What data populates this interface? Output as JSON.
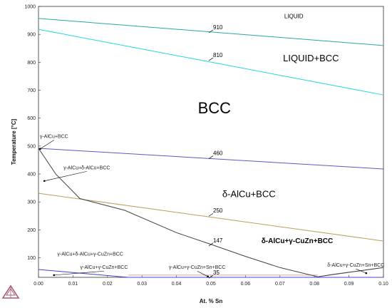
{
  "chart_data": {
    "type": "line",
    "title": "",
    "xlabel": "At. % Sn",
    "ylabel": "Temperature [°C]",
    "xlim": [
      0,
      0.1
    ],
    "ylim": [
      30,
      1000
    ],
    "x_ticks": [
      "0.00",
      "0.01",
      "0.02",
      "0.03",
      "0.04",
      "0.05",
      "0.06",
      "0.07",
      "0.08",
      "0.09",
      "0.10"
    ],
    "y_ticks": [
      "100",
      "200",
      "300",
      "400",
      "500",
      "600",
      "700",
      "800",
      "900",
      "1000"
    ],
    "grid": false,
    "isotherm_lines": [
      {
        "label": "910",
        "color": "#2aa6a3",
        "x": [
          0,
          0.1
        ],
        "y": [
          957,
          860
        ],
        "label_at": [
          0.05,
          911
        ]
      },
      {
        "label": "810",
        "color": "#22d6d6",
        "x": [
          0,
          0.1
        ],
        "y": [
          918,
          683
        ],
        "label_at": [
          0.05,
          811
        ]
      },
      {
        "label": "460",
        "color": "#5a5ac8",
        "x": [
          0,
          0.1
        ],
        "y": [
          492,
          418
        ],
        "label_at": [
          0.05,
          460
        ]
      },
      {
        "label": "250",
        "color": "#b8a060",
        "x": [
          0,
          0.1
        ],
        "y": [
          331,
          160
        ],
        "label_at": [
          0.05,
          254
        ]
      },
      {
        "label": "147",
        "color": "#444444",
        "x": [
          0,
          0.005,
          0.012,
          0.025,
          0.04,
          0.05,
          0.06,
          0.07,
          0.081,
          0.085,
          0.1
        ],
        "y": [
          492,
          400,
          312,
          270,
          190,
          148,
          105,
          65,
          32,
          40,
          65
        ],
        "label_at": [
          0.05,
          148
        ]
      },
      {
        "label": "35",
        "color": "#4444cc",
        "x": [
          0,
          0.026,
          0.1
        ],
        "y": [
          58,
          30,
          30
        ],
        "label_at": [
          0.05,
          32
        ]
      }
    ],
    "boundary_lines": [
      {
        "color": "#c080c0",
        "x": [
          0.081,
          0.1
        ],
        "y": [
          32,
          65
        ]
      },
      {
        "color": "#e0a0a0",
        "x": [
          0.026,
          0.081
        ],
        "y": [
          38,
          38
        ]
      }
    ],
    "regions": [
      {
        "label": "LIQUID",
        "at": [
          0.074,
          958
        ],
        "style": "small"
      },
      {
        "label": "LIQUID+BCC",
        "at": [
          0.079,
          804
        ],
        "style": "mid"
      },
      {
        "label": "BCC",
        "at": [
          0.051,
          617
        ],
        "style": "huge"
      },
      {
        "label": "δ-AlCu+BCC",
        "at": [
          0.061,
          317
        ],
        "style": "mid"
      },
      {
        "label": "δ-AlCu+γ-CuZn+BCC",
        "at": [
          0.075,
          152
        ],
        "style": "bold"
      }
    ],
    "annotations": [
      {
        "label": "γ-AlCu+BCC",
        "text_at": [
          0.0045,
          529
        ],
        "target": [
          0.0005,
          490
        ]
      },
      {
        "label": "γ-AlCu+δ-AlCu+BCC",
        "text_at": [
          0.014,
          417
        ],
        "target": [
          0.0017,
          375
        ]
      },
      {
        "label": "γ-AlCu+δ-AlCu+γ-CuZn+BCC",
        "text_at": [
          0.015,
          108
        ],
        "target": null
      },
      {
        "label": "γ-AlCu+γ-CuZn+BCC",
        "text_at": [
          0.019,
          60
        ],
        "target": [
          0.0045,
          38
        ]
      },
      {
        "label": "γ-AlCu+γ-CuZn+Sn+BCC",
        "text_at": [
          0.046,
          60
        ],
        "target": [
          0.0491,
          33
        ]
      },
      {
        "label": "δ-AlCu+γ-CuZn+Sn+BCC",
        "text_at": [
          0.092,
          68
        ],
        "target": [
          0.095,
          45
        ]
      }
    ]
  }
}
